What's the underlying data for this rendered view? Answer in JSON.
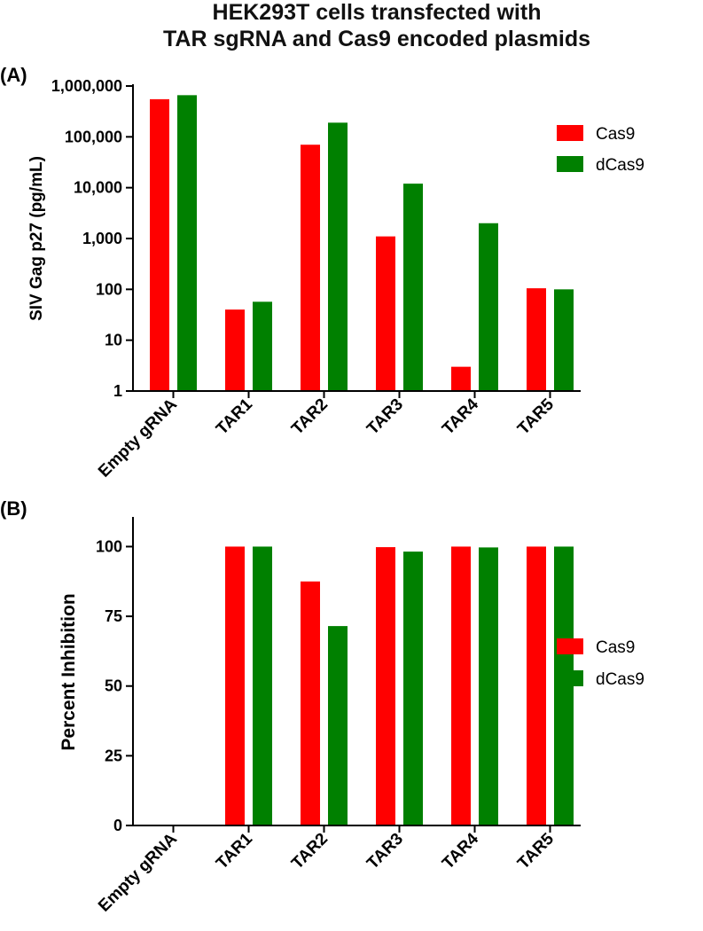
{
  "figure": {
    "title_line1": "HEK293T cells transfected with",
    "title_line2": "TAR sgRNA and Cas9 encoded plasmids"
  },
  "chart_data": [
    {
      "panel": "(A)",
      "type": "bar",
      "scale": "log",
      "ylabel": "SIV Gag p27 (pg/mL)",
      "ylim": [
        1,
        1000000
      ],
      "yticks": [
        1,
        10,
        100,
        1000,
        10000,
        100000,
        1000000
      ],
      "ytick_labels": [
        "1",
        "10",
        "100",
        "1,000",
        "10,000",
        "100,000",
        "1,000,000"
      ],
      "categories": [
        "Empty gRNA",
        "TAR1",
        "TAR2",
        "TAR3",
        "TAR4",
        "TAR5"
      ],
      "series": [
        {
          "name": "Cas9",
          "color": "#ff0000",
          "values": [
            550000,
            40,
            70000,
            1100,
            3,
            105
          ]
        },
        {
          "name": "dCas9",
          "color": "#008000",
          "values": [
            660000,
            57,
            190000,
            12000,
            2000,
            100
          ]
        }
      ],
      "legend": [
        "Cas9",
        "dCas9"
      ],
      "legend_position": "right"
    },
    {
      "panel": "(B)",
      "type": "bar",
      "scale": "linear",
      "ylabel": "Percent Inhibition",
      "ylim": [
        0,
        110
      ],
      "yticks": [
        0,
        25,
        50,
        75,
        100
      ],
      "ytick_labels": [
        "0",
        "25",
        "50",
        "75",
        "100"
      ],
      "categories": [
        "Empty gRNA",
        "TAR1",
        "TAR2",
        "TAR3",
        "TAR4",
        "TAR5"
      ],
      "series": [
        {
          "name": "Cas9",
          "color": "#ff0000",
          "values": [
            0,
            100,
            87.5,
            99.8,
            100,
            100
          ]
        },
        {
          "name": "dCas9",
          "color": "#008000",
          "values": [
            0,
            100,
            71.5,
            98.2,
            99.7,
            100
          ]
        }
      ],
      "legend": [
        "Cas9",
        "dCas9"
      ],
      "legend_position": "right"
    }
  ]
}
